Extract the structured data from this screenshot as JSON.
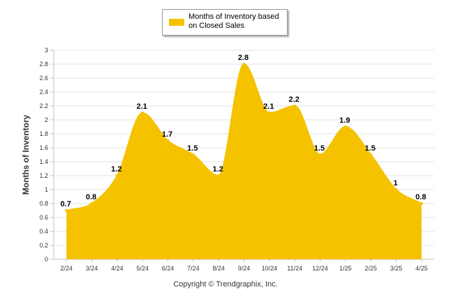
{
  "chart_data": {
    "type": "area",
    "categories": [
      "2/24",
      "3/24",
      "4/24",
      "5/24",
      "6/24",
      "7/24",
      "8/24",
      "9/24",
      "10/24",
      "11/24",
      "12/24",
      "1/25",
      "2/25",
      "3/25",
      "4/25"
    ],
    "series": [
      {
        "name": "Months of Inventory based on Closed Sales",
        "values": [
          0.7,
          0.8,
          1.2,
          2.1,
          1.7,
          1.5,
          1.2,
          2.8,
          2.1,
          2.2,
          1.5,
          1.9,
          1.5,
          1.0,
          0.8
        ],
        "labels": [
          "0.7",
          "0.8",
          "1.2",
          "2.1",
          "1.7",
          "1.5",
          "1.2",
          "2.8",
          "2.1",
          "2.2",
          "1.5",
          "1.9",
          "1.5",
          "1",
          "0.8"
        ],
        "color": "#F5C200"
      }
    ],
    "ylabel": "Months of Inventory",
    "xlabel": "",
    "ylim": [
      0,
      3
    ],
    "yticks": [
      "0",
      "0.2",
      "0.4",
      "0.6",
      "0.8",
      "1",
      "1.2",
      "1.4",
      "1.6",
      "1.8",
      "2",
      "2.2",
      "2.4",
      "2.6",
      "2.8",
      "3"
    ],
    "grid": true,
    "legend": "top-center"
  },
  "legend": {
    "label": "Months of Inventory based on Closed Sales"
  },
  "footer": {
    "copyright": "Copyright © Trendgraphix, Inc."
  },
  "colors": {
    "fill": "#F5C200",
    "grid": "#E3E3E3",
    "axis": "#C0C0C0"
  }
}
